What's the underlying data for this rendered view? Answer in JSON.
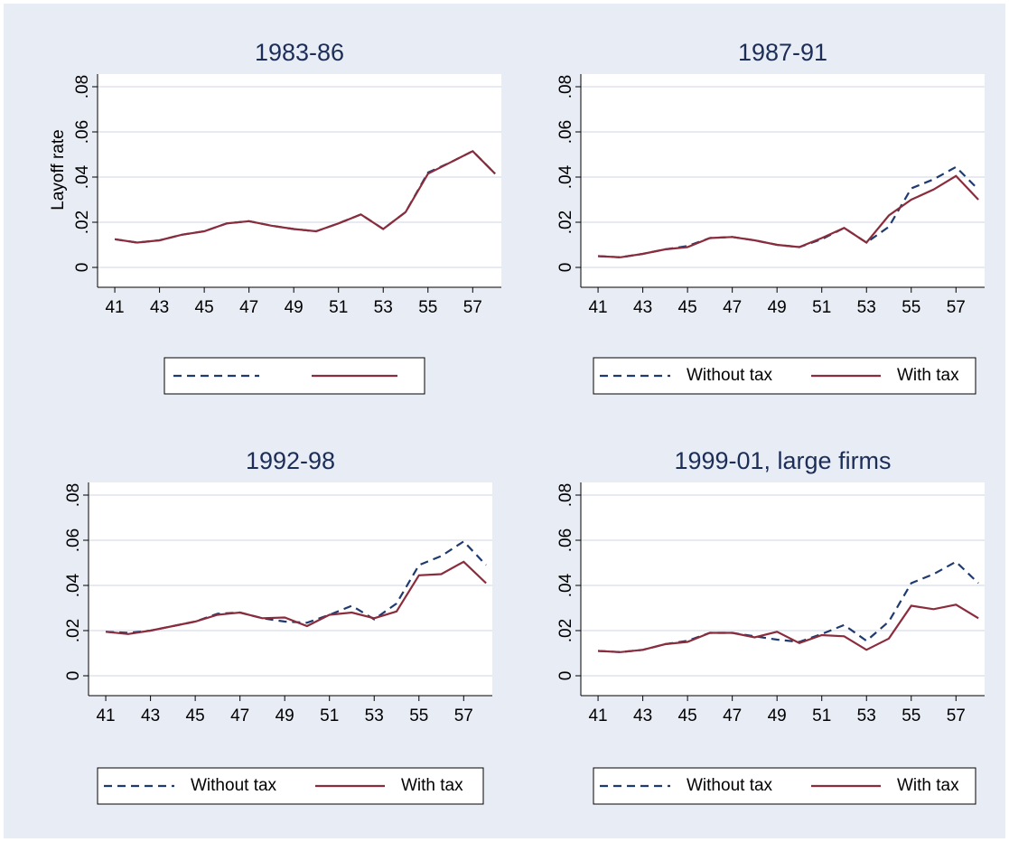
{
  "chart_data": [
    {
      "type": "line",
      "title": "1983-86",
      "ylabel": "Layoff rate",
      "legend": "bottom",
      "grid": true,
      "x": [
        41,
        42,
        43,
        44,
        45,
        46,
        47,
        48,
        49,
        50,
        51,
        52,
        53,
        54,
        55,
        56,
        57,
        58
      ],
      "xlim": [
        40.23,
        58.28
      ],
      "xticks": [
        41,
        43,
        45,
        47,
        49,
        51,
        53,
        55,
        57
      ],
      "ylim": [
        -0.0088,
        0.0856
      ],
      "yticks": [
        0,
        {
          "value": 0.02,
          "label": ".02"
        },
        {
          "value": 0.04,
          "label": ".04"
        },
        {
          "value": 0.06,
          "label": ".06"
        },
        {
          "value": 0.08,
          "label": ".08"
        }
      ],
      "series": [
        {
          "color": "#1f3a6e",
          "dash": true,
          "values": [
            0.0125,
            0.011,
            0.012,
            0.0145,
            0.016,
            0.0195,
            0.0205,
            0.0185,
            0.017,
            0.016,
            0.0195,
            0.0235,
            0.017,
            0.0245,
            0.042,
            0.0465,
            0.0515,
            0.0415
          ]
        },
        {
          "color": "#8b2c3c",
          "dash": false,
          "values": [
            0.0125,
            0.011,
            0.012,
            0.0145,
            0.016,
            0.0195,
            0.0205,
            0.0185,
            0.017,
            0.016,
            0.0195,
            0.0235,
            0.017,
            0.0245,
            0.0415,
            0.0465,
            0.0515,
            0.0415
          ]
        }
      ]
    },
    {
      "type": "line",
      "title": "1987-91",
      "legend": "bottom",
      "grid": true,
      "x": [
        41,
        42,
        43,
        44,
        45,
        46,
        47,
        48,
        49,
        50,
        51,
        52,
        53,
        54,
        55,
        56,
        57,
        58
      ],
      "xlim": [
        40.23,
        58.28
      ],
      "xticks": [
        41,
        43,
        45,
        47,
        49,
        51,
        53,
        55,
        57
      ],
      "ylim": [
        -0.0088,
        0.0856
      ],
      "yticks": [
        0,
        {
          "value": 0.02,
          "label": ".02"
        },
        {
          "value": 0.04,
          "label": ".04"
        },
        {
          "value": 0.06,
          "label": ".06"
        },
        {
          "value": 0.08,
          "label": ".08"
        }
      ],
      "series": [
        {
          "name": "Without tax",
          "color": "#1f3a6e",
          "dash": true,
          "values": [
            0.005,
            0.0045,
            0.006,
            0.008,
            0.0095,
            0.013,
            0.0135,
            0.012,
            0.01,
            0.009,
            0.0125,
            0.0175,
            0.011,
            0.018,
            0.035,
            0.039,
            0.0445,
            0.0345
          ]
        },
        {
          "name": "With tax",
          "color": "#8b2c3c",
          "dash": false,
          "values": [
            0.005,
            0.0045,
            0.006,
            0.008,
            0.009,
            0.013,
            0.0135,
            0.012,
            0.01,
            0.009,
            0.013,
            0.0175,
            0.011,
            0.023,
            0.03,
            0.0345,
            0.0405,
            0.03
          ]
        }
      ]
    },
    {
      "type": "line",
      "title": "1992-98",
      "legend": "bottom",
      "grid": true,
      "x": [
        41,
        42,
        43,
        44,
        45,
        46,
        47,
        48,
        49,
        50,
        51,
        52,
        53,
        54,
        55,
        56,
        57,
        58
      ],
      "xlim": [
        40.23,
        58.28
      ],
      "xticks": [
        41,
        43,
        45,
        47,
        49,
        51,
        53,
        55,
        57
      ],
      "ylim": [
        -0.0088,
        0.0856
      ],
      "yticks": [
        0,
        {
          "value": 0.02,
          "label": ".02"
        },
        {
          "value": 0.04,
          "label": ".04"
        },
        {
          "value": 0.06,
          "label": ".06"
        },
        {
          "value": 0.08,
          "label": ".08"
        }
      ],
      "series": [
        {
          "name": "Without tax",
          "color": "#1f3a6e",
          "dash": true,
          "values": [
            0.0195,
            0.019,
            0.02,
            0.022,
            0.024,
            0.0275,
            0.028,
            0.0255,
            0.024,
            0.0235,
            0.027,
            0.031,
            0.025,
            0.032,
            0.049,
            0.053,
            0.0595,
            0.049
          ]
        },
        {
          "name": "With tax",
          "color": "#8b2c3c",
          "dash": false,
          "values": [
            0.0195,
            0.0185,
            0.02,
            0.022,
            0.024,
            0.027,
            0.028,
            0.0255,
            0.0258,
            0.022,
            0.027,
            0.028,
            0.0255,
            0.0285,
            0.0445,
            0.045,
            0.0505,
            0.041
          ]
        }
      ]
    },
    {
      "type": "line",
      "title": "1999-01, large firms",
      "legend": "bottom",
      "grid": true,
      "x": [
        41,
        42,
        43,
        44,
        45,
        46,
        47,
        48,
        49,
        50,
        51,
        52,
        53,
        54,
        55,
        56,
        57,
        58
      ],
      "xlim": [
        40.23,
        58.28
      ],
      "xticks": [
        41,
        43,
        45,
        47,
        49,
        51,
        53,
        55,
        57
      ],
      "ylim": [
        -0.0088,
        0.0856
      ],
      "yticks": [
        0,
        {
          "value": 0.02,
          "label": ".02"
        },
        {
          "value": 0.04,
          "label": ".04"
        },
        {
          "value": 0.06,
          "label": ".06"
        },
        {
          "value": 0.08,
          "label": ".08"
        }
      ],
      "series": [
        {
          "name": "Without tax",
          "color": "#1f3a6e",
          "dash": true,
          "values": [
            0.011,
            0.0105,
            0.0115,
            0.014,
            0.0155,
            0.019,
            0.019,
            0.0175,
            0.016,
            0.015,
            0.0185,
            0.0225,
            0.0155,
            0.024,
            0.041,
            0.045,
            0.0505,
            0.041
          ]
        },
        {
          "name": "With tax",
          "color": "#8b2c3c",
          "dash": false,
          "values": [
            0.011,
            0.0105,
            0.0115,
            0.014,
            0.015,
            0.019,
            0.019,
            0.017,
            0.0195,
            0.0145,
            0.018,
            0.0175,
            0.0115,
            0.0165,
            0.031,
            0.0295,
            0.0315,
            0.0255
          ]
        }
      ]
    }
  ]
}
